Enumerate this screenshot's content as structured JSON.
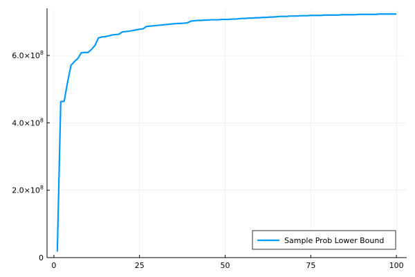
{
  "chart_data": {
    "type": "line",
    "title": "",
    "xlabel": "",
    "ylabel": "",
    "xlim": [
      -2,
      103
    ],
    "ylim": [
      0,
      740000000
    ],
    "grid": true,
    "legend_position": "bottom-right",
    "x_ticks": [
      {
        "value": 0,
        "label": "0"
      },
      {
        "value": 25,
        "label": "25"
      },
      {
        "value": 50,
        "label": "50"
      },
      {
        "value": 75,
        "label": "75"
      },
      {
        "value": 100,
        "label": "100"
      }
    ],
    "y_ticks": [
      {
        "value": 0,
        "mantissa": "0",
        "exp": ""
      },
      {
        "value": 200000000,
        "mantissa": "2.0×10",
        "exp": "8"
      },
      {
        "value": 400000000,
        "mantissa": "4.0×10",
        "exp": "8"
      },
      {
        "value": 600000000,
        "mantissa": "6.0×10",
        "exp": "8"
      }
    ],
    "series": [
      {
        "name": "Sample Prob Lower Bound",
        "color": "#009af9",
        "x": [
          1,
          2,
          3,
          4,
          5,
          6,
          7,
          8,
          9,
          10,
          11,
          12,
          13,
          14,
          15,
          16,
          17,
          18,
          19,
          20,
          21,
          22,
          23,
          24,
          25,
          26,
          27,
          28,
          29,
          30,
          31,
          32,
          33,
          34,
          35,
          36,
          37,
          38,
          39,
          40,
          41,
          42,
          43,
          44,
          45,
          46,
          47,
          48,
          49,
          50,
          51,
          52,
          53,
          54,
          55,
          56,
          57,
          58,
          59,
          60,
          61,
          62,
          63,
          64,
          65,
          66,
          67,
          68,
          69,
          70,
          71,
          72,
          73,
          74,
          75,
          76,
          77,
          78,
          79,
          80,
          81,
          82,
          83,
          84,
          85,
          86,
          87,
          88,
          89,
          90,
          91,
          92,
          93,
          94,
          95,
          96,
          97,
          98,
          99,
          100
        ],
        "values": [
          18000000,
          463000000,
          464000000,
          521000000,
          571000000,
          582000000,
          591000000,
          608000000,
          609000000,
          609000000,
          618000000,
          630000000,
          652000000,
          655000000,
          656000000,
          658000000,
          661000000,
          662000000,
          663000000,
          670000000,
          671000000,
          672000000,
          674000000,
          676000000,
          678000000,
          679000000,
          686000000,
          687000000,
          688000000,
          689000000,
          690000000,
          691000000,
          692000000,
          693000000,
          694000000,
          695000000,
          695000000,
          696000000,
          697000000,
          702000000,
          703000000,
          704000000,
          704000000,
          705000000,
          705000000,
          706000000,
          706000000,
          706000000,
          707000000,
          707000000,
          707000000,
          708000000,
          708000000,
          709000000,
          710000000,
          710000000,
          711000000,
          711000000,
          712000000,
          712000000,
          713000000,
          713000000,
          714000000,
          714000000,
          715000000,
          716000000,
          716000000,
          716000000,
          717000000,
          717000000,
          717000000,
          718000000,
          718000000,
          718000000,
          719000000,
          719000000,
          719000000,
          719000000,
          720000000,
          720000000,
          720000000,
          720000000,
          720000000,
          721000000,
          721000000,
          721000000,
          721000000,
          721000000,
          722000000,
          722000000,
          722000000,
          722000000,
          722000000,
          722000000,
          723000000,
          723000000,
          723000000,
          723000000,
          723000000,
          723000000
        ]
      }
    ]
  }
}
